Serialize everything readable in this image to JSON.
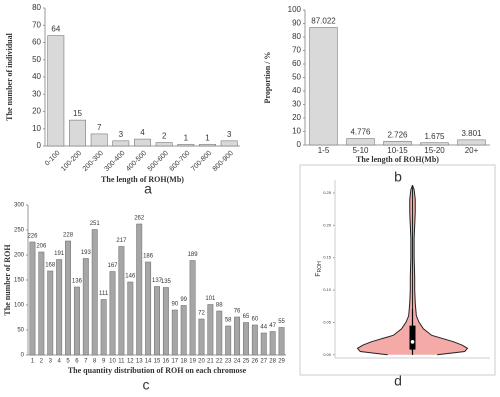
{
  "chart_data": [
    {
      "type": "bar",
      "label": "a",
      "ylabel": "The number of individual",
      "xlabel": "The length of ROH(Mb)",
      "categories": [
        "0-100",
        "100-200",
        "200-300",
        "300-400",
        "400-500",
        "500-600",
        "600-700",
        "700-800",
        "800-900"
      ],
      "values": [
        64,
        15,
        7,
        3,
        4,
        2,
        1,
        1,
        3
      ],
      "color": "#d9d9d9",
      "ylim": [
        0,
        80
      ],
      "yticks": [
        0,
        10,
        20,
        30,
        40,
        50,
        60,
        70,
        80
      ],
      "grid": false
    },
    {
      "type": "bar",
      "label": "b",
      "ylabel": "Proportion / %",
      "xlabel": "The length of ROH(Mb)",
      "categories": [
        "1-5",
        "5-10",
        "10-15",
        "15-20",
        "20+"
      ],
      "values": [
        87.022,
        4.776,
        2.726,
        1.675,
        3.801
      ],
      "color": "#d9d9d9",
      "ylim": [
        0,
        100
      ],
      "yticks": [
        0,
        10,
        20,
        30,
        40,
        50,
        60,
        70,
        80,
        90,
        100
      ],
      "grid": false
    },
    {
      "type": "bar",
      "label": "c",
      "ylabel": "The number of ROH",
      "xlabel": "The quantity distribution  of ROH on each chromose",
      "categories": [
        "1",
        "2",
        "3",
        "4",
        "5",
        "6",
        "7",
        "8",
        "9",
        "10",
        "11",
        "12",
        "13",
        "14",
        "15",
        "16",
        "17",
        "18",
        "19",
        "20",
        "21",
        "22",
        "23",
        "24",
        "25",
        "26",
        "27",
        "28",
        "29"
      ],
      "values": [
        226,
        206,
        168,
        191,
        228,
        136,
        193,
        251,
        111,
        167,
        217,
        146,
        262,
        186,
        137,
        135,
        90,
        99,
        189,
        72,
        101,
        88,
        58,
        76,
        65,
        60,
        44,
        47,
        55
      ],
      "color": "#a6a6a6",
      "ylim": [
        0,
        300
      ],
      "yticks": [
        0,
        50,
        100,
        150,
        200,
        250,
        300
      ],
      "grid": false
    },
    {
      "type": "violin",
      "label": "d",
      "ylabel": "F",
      "ylabel_sub": "ROH",
      "color": "#f4aaa6",
      "y": [
        0.0,
        0.005,
        0.01,
        0.015,
        0.02,
        0.03,
        0.04,
        0.05,
        0.06,
        0.08,
        0.1,
        0.12,
        0.15,
        0.18,
        0.2,
        0.22,
        0.24,
        0.255,
        0.262
      ],
      "density": [
        0.45,
        0.95,
        1.0,
        0.9,
        0.75,
        0.35,
        0.2,
        0.12,
        0.07,
        0.05,
        0.04,
        0.04,
        0.03,
        0.03,
        0.04,
        0.05,
        0.05,
        0.03,
        0
      ],
      "q1": 0.008,
      "median": 0.02,
      "q3": 0.045,
      "whisker_low": 0.0,
      "whisker_high": 0.07,
      "ylim": [
        -0.005,
        0.27
      ],
      "yticks": [
        {
          "value": 0,
          "label": "0.00"
        },
        {
          "value": 0.05,
          "label": "0.05"
        },
        {
          "value": 0.1,
          "label": "0.10"
        },
        {
          "value": 0.15,
          "label": "0.15"
        },
        {
          "value": 0.2,
          "label": "0.20"
        },
        {
          "value": 0.25,
          "label": "0.25"
        }
      ]
    }
  ]
}
